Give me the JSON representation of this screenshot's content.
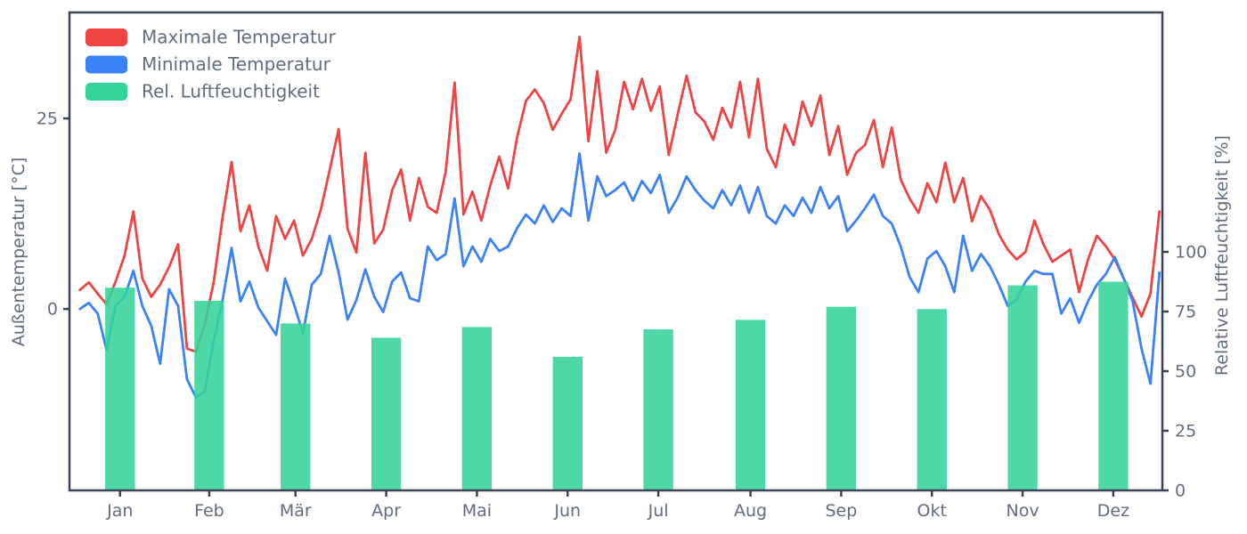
{
  "figure": {
    "background": "#ffffff",
    "text_color": "#616c7d",
    "spine_color": "#3a4454",
    "line_width": 2.8,
    "spine_width": 2.5
  },
  "legend": {
    "items": [
      {
        "label": "Maximale Temperatur",
        "color": "#ee4444",
        "swatch": "patch"
      },
      {
        "label": "Minimale Temperatur",
        "color": "#3b82f6",
        "swatch": "patch"
      },
      {
        "label": "Rel. Luftfeuchtigkeit",
        "color": "#34d399",
        "swatch": "patch"
      }
    ]
  },
  "chart_data": {
    "type": "line+bar",
    "title": "",
    "x_unit": "day_of_year",
    "x_range": [
      -2.5,
      365
    ],
    "grid": false,
    "legend_position": "upper-left",
    "x_tick_labels": [
      "Jan",
      "Feb",
      "Mär",
      "Apr",
      "Mai",
      "Jun",
      "Jul",
      "Aug",
      "Sep",
      "Okt",
      "Nov",
      "Dez"
    ],
    "x_tick_days": [
      14.5,
      44.5,
      73.5,
      104,
      134.5,
      165,
      195.5,
      226.5,
      257,
      287.5,
      318,
      348.5
    ],
    "left_axis": {
      "label": "Außentemperatur [°C]",
      "ticks": [
        0,
        25
      ],
      "range": [
        -23.8,
        38.9
      ]
    },
    "right_axis": {
      "label": "Relative Luftfeuchtigkeit [%]",
      "ticks": [
        0,
        25,
        50,
        75,
        100
      ],
      "range": [
        0,
        200.4
      ]
    },
    "x_days": [
      1,
      4,
      7,
      10,
      13,
      16,
      19,
      22,
      25,
      28,
      31,
      34,
      37,
      40,
      43,
      46,
      49,
      52,
      55,
      58,
      61,
      64,
      67,
      70,
      73,
      76,
      79,
      82,
      85,
      88,
      91,
      94,
      97,
      100,
      103,
      106,
      109,
      112,
      115,
      118,
      121,
      124,
      127,
      130,
      133,
      136,
      139,
      142,
      145,
      148,
      151,
      154,
      157,
      160,
      163,
      166,
      169,
      172,
      175,
      178,
      181,
      184,
      187,
      190,
      193,
      196,
      199,
      202,
      205,
      208,
      211,
      214,
      217,
      220,
      223,
      226,
      229,
      232,
      235,
      238,
      241,
      244,
      247,
      250,
      253,
      256,
      259,
      262,
      265,
      268,
      271,
      274,
      277,
      280,
      283,
      286,
      289,
      292,
      295,
      298,
      301,
      304,
      307,
      310,
      313,
      316,
      319,
      322,
      325,
      328,
      331,
      334,
      337,
      340,
      343,
      346,
      349,
      352,
      355,
      358,
      361,
      364
    ],
    "series": [
      {
        "name": "Maximale Temperatur",
        "type": "line",
        "axis": "left",
        "color": "#ee4444",
        "values": [
          2.5,
          3.5,
          2.0,
          0.6,
          3.6,
          7.0,
          12.8,
          4.0,
          1.6,
          3.2,
          5.5,
          8.5,
          -5.2,
          -5.6,
          -2.0,
          3.5,
          12.0,
          19.3,
          10.2,
          13.6,
          8.2,
          5.0,
          12.2,
          9.2,
          11.6,
          7.0,
          9.2,
          13.0,
          18.2,
          23.6,
          10.5,
          7.4,
          20.5,
          8.6,
          10.4,
          15.6,
          18.3,
          11.6,
          17.2,
          13.4,
          12.6,
          18.0,
          29.7,
          12.4,
          15.4,
          11.6,
          16.2,
          20.0,
          15.8,
          22.5,
          27.3,
          28.8,
          27.0,
          23.5,
          25.6,
          27.5,
          35.7,
          22.0,
          31.2,
          20.5,
          23.5,
          29.8,
          26.2,
          30.2,
          26.0,
          29.2,
          20.2,
          25.5,
          30.6,
          25.8,
          24.6,
          22.2,
          26.4,
          23.8,
          29.8,
          22.5,
          30.2,
          21.0,
          18.6,
          24.2,
          21.5,
          27.2,
          24.0,
          28.0,
          20.2,
          24.0,
          17.6,
          20.5,
          21.5,
          24.8,
          18.6,
          23.8,
          17.0,
          14.5,
          12.6,
          16.5,
          14.0,
          19.2,
          14.0,
          17.2,
          11.5,
          14.8,
          13.0,
          9.8,
          7.8,
          6.5,
          7.5,
          11.6,
          8.5,
          6.2,
          7.0,
          7.8,
          2.2,
          6.5,
          9.6,
          8.2,
          6.5,
          4.0,
          1.5,
          -1.0,
          2.0,
          12.8
        ]
      },
      {
        "name": "Minimale Temperatur",
        "type": "line",
        "axis": "left",
        "color": "#3b82f6",
        "values": [
          0.0,
          0.8,
          -0.6,
          -5.4,
          0.4,
          1.6,
          5.0,
          0.4,
          -2.2,
          -7.2,
          2.6,
          0.4,
          -9.2,
          -11.6,
          -10.8,
          -4.2,
          1.2,
          8.0,
          1.0,
          3.6,
          0.2,
          -1.6,
          -3.4,
          4.0,
          0.6,
          -3.2,
          3.2,
          4.6,
          9.6,
          4.8,
          -1.4,
          1.2,
          5.2,
          1.6,
          -0.4,
          3.6,
          4.8,
          1.4,
          1.0,
          8.2,
          6.4,
          7.2,
          14.5,
          5.6,
          8.2,
          6.2,
          9.2,
          7.6,
          8.2,
          10.6,
          12.4,
          11.2,
          13.6,
          11.4,
          13.2,
          12.2,
          20.4,
          11.6,
          17.4,
          14.8,
          15.6,
          16.6,
          14.2,
          16.8,
          15.2,
          17.6,
          12.6,
          14.6,
          17.4,
          15.6,
          14.2,
          13.2,
          15.6,
          13.6,
          16.2,
          12.6,
          16.0,
          12.2,
          11.2,
          13.6,
          12.2,
          14.6,
          12.6,
          16.0,
          13.2,
          14.8,
          10.2,
          11.6,
          13.2,
          15.0,
          12.2,
          11.2,
          8.2,
          4.2,
          2.2,
          6.6,
          7.6,
          5.6,
          2.2,
          9.6,
          5.0,
          7.2,
          5.6,
          3.2,
          0.4,
          1.2,
          3.6,
          5.0,
          4.6,
          4.6,
          -0.6,
          1.4,
          -1.8,
          1.0,
          3.2,
          4.6,
          6.8,
          4.0,
          1.0,
          -5.2,
          -9.8,
          4.8
        ]
      },
      {
        "name": "Rel. Luftfeuchtigkeit",
        "type": "bar",
        "axis": "right",
        "color": "#34d399",
        "opacity": 0.88,
        "bar_width_days": 10,
        "categories": [
          "Jan",
          "Feb",
          "Mär",
          "Apr",
          "Mai",
          "Jun",
          "Jul",
          "Aug",
          "Sep",
          "Okt",
          "Nov",
          "Dez"
        ],
        "x_days": [
          14.5,
          44.5,
          73.5,
          104,
          134.5,
          165,
          195.5,
          226.5,
          257,
          287.5,
          318,
          348.5
        ],
        "values": [
          85,
          79.5,
          70,
          64,
          68.5,
          56,
          67.5,
          71.5,
          77,
          76,
          86,
          87.5
        ]
      }
    ]
  }
}
